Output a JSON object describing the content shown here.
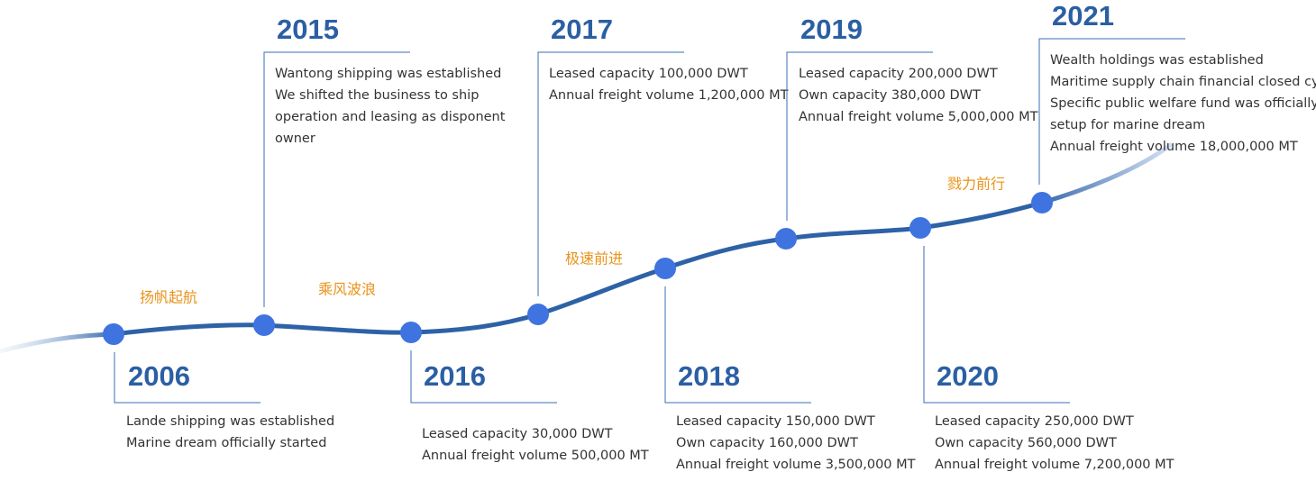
{
  "milestones": [
    {
      "year": "2006",
      "lines": [
        "Lande shipping was established",
        "Marine dream officially started"
      ]
    },
    {
      "year": "2015",
      "lines": [
        "Wantong shipping was established",
        "We shifted the business to ship",
        "operation and leasing as disponent",
        "owner"
      ]
    },
    {
      "year": "2016",
      "lines": [
        "Leased capacity 30,000 DWT",
        "Annual freight volume 500,000 MT"
      ]
    },
    {
      "year": "2017",
      "lines": [
        "Leased capacity 100,000 DWT",
        "Annual freight volume 1,200,000 MT"
      ]
    },
    {
      "year": "2018",
      "lines": [
        "Leased capacity 150,000 DWT",
        "Own capacity 160,000 DWT",
        "Annual freight volume 3,500,000 MT"
      ]
    },
    {
      "year": "2019",
      "lines": [
        "Leased capacity 200,000 DWT",
        "Own capacity 380,000 DWT",
        "Annual freight volume 5,000,000 MT"
      ]
    },
    {
      "year": "2020",
      "lines": [
        "Leased capacity 250,000 DWT",
        "Own capacity 560,000 DWT",
        "Annual freight volume 7,200,000 MT"
      ]
    },
    {
      "year": "2021",
      "lines": [
        "Wealth holdings was established",
        "Maritime supply chain financial closed cycle",
        "Specific public welfare fund was officially",
        "setup for marine dream",
        "Annual freight volume 18,000,000 MT"
      ]
    }
  ],
  "phrases": [
    "扬帆起航",
    "乘风波浪",
    "极速前进",
    "戮力前行"
  ]
}
